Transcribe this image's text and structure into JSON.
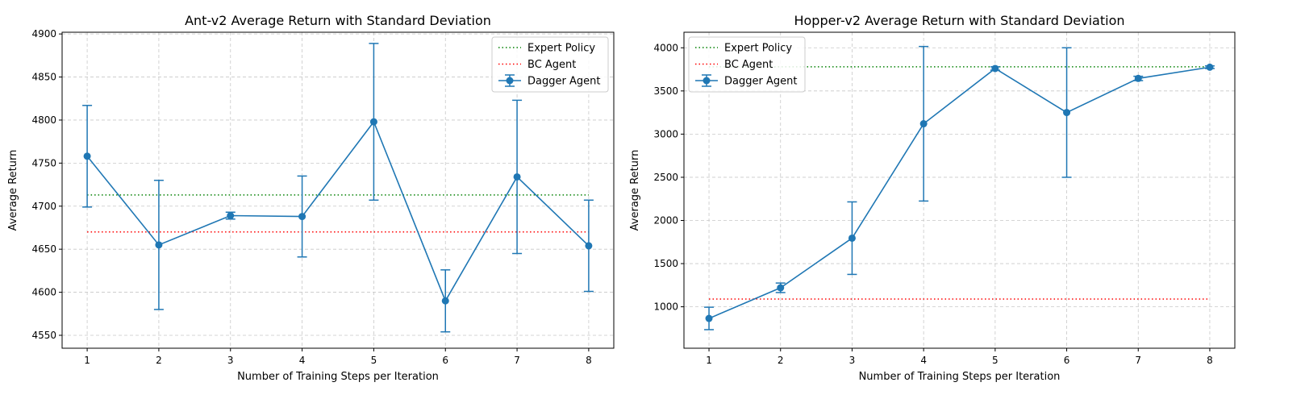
{
  "chart_data": [
    {
      "type": "line",
      "title": "Ant-v2 Average Return with Standard Deviation",
      "xlabel": "Number of Training Steps per Iteration",
      "ylabel": "Average Return",
      "x": [
        1,
        2,
        3,
        4,
        5,
        6,
        7,
        8
      ],
      "xlim": [
        0.65,
        8.35
      ],
      "ylim": [
        4535,
        4902
      ],
      "yticks": [
        4550,
        4600,
        4650,
        4700,
        4750,
        4800,
        4850,
        4900
      ],
      "grid": true,
      "legend_position": "top-right",
      "colors": {
        "expert": "#008000",
        "bc": "#ff0000",
        "dagger": "#1f77b4"
      },
      "series": [
        {
          "name": "Expert Policy",
          "style": "dotted",
          "values": [
            4713,
            4713,
            4713,
            4713,
            4713,
            4713,
            4713,
            4713
          ]
        },
        {
          "name": "BC Agent",
          "style": "dotted",
          "values": [
            4670,
            4670,
            4670,
            4670,
            4670,
            4670,
            4670,
            4670
          ]
        },
        {
          "name": "Dagger Agent",
          "style": "errorbar",
          "values": [
            4758,
            4655,
            4689,
            4688,
            4798,
            4590,
            4734,
            4654
          ],
          "std": [
            59,
            75,
            4,
            47,
            91,
            36,
            89,
            53
          ]
        }
      ]
    },
    {
      "type": "line",
      "title": "Hopper-v2 Average Return with Standard Deviation",
      "xlabel": "Number of Training Steps per Iteration",
      "ylabel": "Average Return",
      "x": [
        1,
        2,
        3,
        4,
        5,
        6,
        7,
        8
      ],
      "xlim": [
        0.65,
        8.35
      ],
      "ylim": [
        520,
        4180
      ],
      "yticks": [
        1000,
        1500,
        2000,
        2500,
        3000,
        3500,
        4000
      ],
      "grid": true,
      "legend_position": "top-left",
      "colors": {
        "expert": "#008000",
        "bc": "#ff0000",
        "dagger": "#1f77b4"
      },
      "series": [
        {
          "name": "Expert Policy",
          "style": "dotted",
          "values": [
            3780,
            3780,
            3780,
            3780,
            3780,
            3780,
            3780,
            3780
          ]
        },
        {
          "name": "BC Agent",
          "style": "dotted",
          "values": [
            1090,
            1090,
            1090,
            1090,
            1090,
            1090,
            1090,
            1090
          ]
        },
        {
          "name": "Dagger Agent",
          "style": "errorbar",
          "values": [
            865,
            1220,
            1795,
            3120,
            3760,
            3250,
            3645,
            3775
          ],
          "std": [
            130,
            55,
            420,
            895,
            20,
            750,
            25,
            15
          ]
        }
      ]
    }
  ]
}
